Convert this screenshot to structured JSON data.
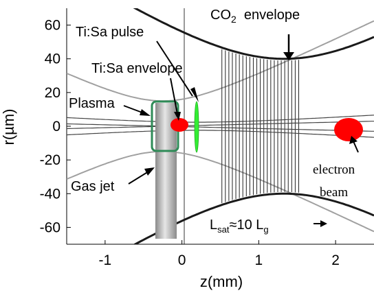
{
  "axes": {
    "xlabel": "z(mm)",
    "ylabel": "r(µm)",
    "xlim": [
      -1.5,
      2.5
    ],
    "ylim": [
      -70,
      70
    ],
    "xticks": [
      {
        "v": -1,
        "label": "-1"
      },
      {
        "v": 0,
        "label": "0"
      },
      {
        "v": 1,
        "label": "1"
      },
      {
        "v": 2,
        "label": "2"
      }
    ],
    "yticks": [
      {
        "v": 60,
        "label": "60"
      },
      {
        "v": 40,
        "label": "40"
      },
      {
        "v": 20,
        "label": "20"
      },
      {
        "v": 0,
        "label": "0"
      },
      {
        "v": -20,
        "label": "-20"
      },
      {
        "v": -40,
        "label": "-40"
      },
      {
        "v": -60,
        "label": "-60"
      }
    ]
  },
  "labels": {
    "co2_main": "CO",
    "co2_sub": "2",
    "co2_rest": "  envelope",
    "tisa_pulse": "Ti:Sa pulse",
    "tisa_envelope": "Ti:Sa envelope",
    "plasma": "Plasma",
    "gas_jet": "Gas jet",
    "electron": "electron",
    "beam": "beam",
    "lsat_L": "L",
    "lsat_sub": "sat",
    "lsat_mid": "≈10 L",
    "lsat_g": "g"
  },
  "colors": {
    "co2_envelope": "#1a1a1a",
    "tisa_envelope": "#a0a0a0",
    "plasma_border": "#2e8b57",
    "electron_beam": "#ff0000",
    "tisa_pulse": "#33ee33",
    "gas_jet": "#b8b8b8"
  }
}
